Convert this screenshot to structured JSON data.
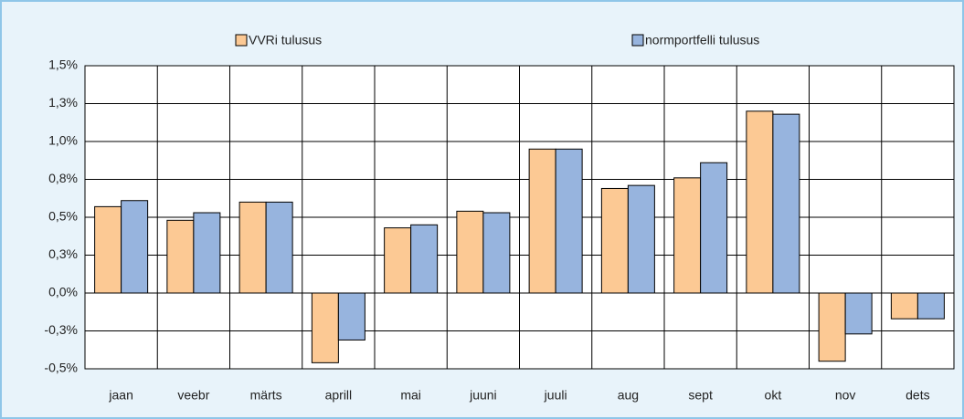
{
  "chart_data": {
    "type": "bar",
    "categories": [
      "jaan",
      "veebr",
      "märts",
      "aprill",
      "mai",
      "juuni",
      "juuli",
      "aug",
      "sept",
      "okt",
      "nov",
      "dets"
    ],
    "series": [
      {
        "name": "VVRi tulusus",
        "color": "#fcc994",
        "values": [
          0.57,
          0.48,
          0.6,
          -0.46,
          0.43,
          0.54,
          0.95,
          0.69,
          0.76,
          1.2,
          -0.45,
          -0.17
        ]
      },
      {
        "name": "normportfelli tulusus",
        "color": "#97b4de",
        "values": [
          0.61,
          0.53,
          0.6,
          -0.31,
          0.45,
          0.53,
          0.95,
          0.71,
          0.86,
          1.18,
          -0.27,
          -0.17
        ]
      }
    ],
    "ylim": [
      -0.5,
      1.5
    ],
    "yticks": [
      {
        "value": -0.5,
        "label": "-0,5%"
      },
      {
        "value": -0.25,
        "label": "-0,3%"
      },
      {
        "value": 0,
        "label": "0,0%"
      },
      {
        "value": 0.25,
        "label": "0,3%"
      },
      {
        "value": 0.5,
        "label": "0,5%"
      },
      {
        "value": 0.75,
        "label": "0,8%"
      },
      {
        "value": 1.0,
        "label": "1,0%"
      },
      {
        "value": 1.25,
        "label": "1,3%"
      },
      {
        "value": 1.5,
        "label": "1,5%"
      }
    ],
    "grid": true,
    "legend": "top"
  }
}
